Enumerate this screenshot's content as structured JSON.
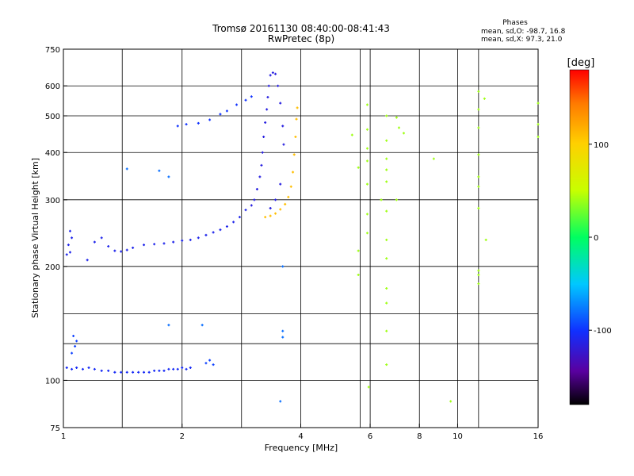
{
  "chart_data": {
    "type": "scatter",
    "title": "Tromsø 20161130 08:40:00-08:41:43",
    "subtitle": "RwPretec (8p)",
    "xlabel": "Frequency [MHz]",
    "ylabel": "Stationary phase Virtual Height [km]",
    "x_scale": "log2",
    "y_scale": "log",
    "xlim": [
      1,
      16
    ],
    "ylim": [
      75,
      750
    ],
    "x_ticks": [
      {
        "value": 1,
        "label": "1"
      },
      {
        "value": 2,
        "label": "2"
      },
      {
        "value": 4,
        "label": "4"
      },
      {
        "value": 6,
        "label": "6"
      },
      {
        "value": 8,
        "label": "8"
      },
      {
        "value": 10,
        "label": "10"
      },
      {
        "value": 16,
        "label": "16"
      }
    ],
    "x_minor_gridlines": [
      1.41,
      2.83,
      5.66,
      11.3
    ],
    "y_ticks": [
      {
        "value": 75,
        "label": "75"
      },
      {
        "value": 100,
        "label": "100"
      },
      {
        "value": 200,
        "label": "200"
      },
      {
        "value": 300,
        "label": "300"
      },
      {
        "value": 400,
        "label": "400"
      },
      {
        "value": 500,
        "label": "500"
      },
      {
        "value": 600,
        "label": "600"
      },
      {
        "value": 750,
        "label": "750"
      }
    ],
    "y_minor_gridlines": [
      125,
      150
    ],
    "grid": true,
    "phase_stats": {
      "title": "Phases",
      "line_o": "mean, sd,O: -98.7, 16.8",
      "line_x": "mean, sd,X:  97.3, 21.0"
    },
    "colorbar": {
      "label": "[deg]",
      "range": [
        -180,
        180
      ],
      "ticks": [
        {
          "value": 100,
          "label": "100"
        },
        {
          "value": 0,
          "label": "0"
        },
        {
          "value": -100,
          "label": "-100"
        }
      ]
    },
    "series": [
      {
        "trace": "E-layer",
        "phase": -105,
        "points": [
          [
            1.02,
            108
          ],
          [
            1.05,
            107
          ],
          [
            1.08,
            108
          ],
          [
            1.12,
            107
          ],
          [
            1.16,
            108
          ],
          [
            1.2,
            107
          ],
          [
            1.25,
            106
          ],
          [
            1.3,
            106
          ],
          [
            1.35,
            105
          ],
          [
            1.4,
            105
          ],
          [
            1.45,
            105
          ],
          [
            1.5,
            105
          ],
          [
            1.55,
            105
          ],
          [
            1.6,
            105
          ],
          [
            1.65,
            105
          ],
          [
            1.7,
            106
          ],
          [
            1.75,
            106
          ],
          [
            1.8,
            106
          ],
          [
            1.85,
            107
          ],
          [
            1.9,
            107
          ],
          [
            1.95,
            107
          ],
          [
            2.0,
            108
          ],
          [
            2.05,
            107
          ],
          [
            2.1,
            108
          ]
        ]
      },
      {
        "trace": "E-echo-upper",
        "phase": -95,
        "points": [
          [
            1.05,
            118
          ],
          [
            1.07,
            123
          ],
          [
            1.08,
            127
          ],
          [
            1.06,
            131
          ],
          [
            2.3,
            111
          ],
          [
            2.35,
            113
          ],
          [
            2.4,
            110
          ]
        ]
      },
      {
        "trace": "F-low-o",
        "phase": -110,
        "points": [
          [
            1.02,
            215
          ],
          [
            1.04,
            218
          ],
          [
            1.03,
            228
          ],
          [
            1.05,
            238
          ],
          [
            1.04,
            248
          ],
          [
            1.15,
            208
          ],
          [
            1.2,
            232
          ],
          [
            1.25,
            238
          ],
          [
            1.3,
            226
          ],
          [
            1.35,
            220
          ],
          [
            1.4,
            219
          ],
          [
            1.45,
            221
          ],
          [
            1.5,
            224
          ],
          [
            1.6,
            228
          ],
          [
            1.7,
            229
          ],
          [
            1.8,
            230
          ],
          [
            1.9,
            232
          ],
          [
            2.0,
            234
          ],
          [
            2.1,
            235
          ],
          [
            2.2,
            238
          ],
          [
            2.3,
            242
          ],
          [
            2.4,
            246
          ],
          [
            2.5,
            250
          ],
          [
            2.6,
            255
          ],
          [
            2.7,
            262
          ],
          [
            2.8,
            270
          ],
          [
            2.9,
            282
          ]
        ]
      },
      {
        "trace": "F-o-cusp",
        "phase": -115,
        "points": [
          [
            3.0,
            290
          ],
          [
            3.05,
            300
          ],
          [
            3.1,
            320
          ],
          [
            3.15,
            345
          ],
          [
            3.18,
            370
          ],
          [
            3.2,
            400
          ],
          [
            3.22,
            440
          ],
          [
            3.25,
            480
          ],
          [
            3.28,
            520
          ],
          [
            3.3,
            560
          ],
          [
            3.32,
            600
          ],
          [
            3.35,
            640
          ],
          [
            3.4,
            650
          ],
          [
            3.45,
            645
          ],
          [
            3.5,
            600
          ],
          [
            3.55,
            540
          ],
          [
            3.6,
            470
          ],
          [
            3.62,
            420
          ],
          [
            3.55,
            330
          ],
          [
            3.45,
            300
          ],
          [
            3.35,
            285
          ]
        ]
      },
      {
        "trace": "F-x",
        "phase": 110,
        "points": [
          [
            3.25,
            270
          ],
          [
            3.35,
            272
          ],
          [
            3.45,
            276
          ],
          [
            3.55,
            283
          ],
          [
            3.65,
            292
          ],
          [
            3.72,
            305
          ],
          [
            3.78,
            325
          ],
          [
            3.82,
            355
          ],
          [
            3.85,
            395
          ],
          [
            3.88,
            440
          ],
          [
            3.9,
            490
          ],
          [
            3.92,
            525
          ]
        ]
      },
      {
        "trace": "spread-F-high",
        "phase": -100,
        "points": [
          [
            1.95,
            470
          ],
          [
            2.05,
            475
          ],
          [
            2.2,
            478
          ],
          [
            2.35,
            488
          ],
          [
            2.5,
            505
          ],
          [
            2.6,
            515
          ],
          [
            2.75,
            535
          ],
          [
            2.9,
            550
          ],
          [
            3.0,
            562
          ]
        ]
      },
      {
        "trace": "isolated",
        "phase": -80,
        "points": [
          [
            1.45,
            362
          ],
          [
            1.75,
            358
          ],
          [
            1.85,
            345
          ],
          [
            1.85,
            140
          ],
          [
            2.25,
            140
          ],
          [
            3.6,
            200
          ],
          [
            3.55,
            88
          ],
          [
            3.6,
            135
          ],
          [
            3.6,
            130
          ]
        ]
      },
      {
        "trace": "high-freq-scatter",
        "phase": 40,
        "points": [
          [
            5.4,
            445
          ],
          [
            5.6,
            365
          ],
          [
            5.6,
            220
          ],
          [
            5.6,
            190
          ],
          [
            5.9,
            535
          ],
          [
            5.9,
            460
          ],
          [
            5.9,
            410
          ],
          [
            5.9,
            380
          ],
          [
            5.9,
            330
          ],
          [
            5.9,
            275
          ],
          [
            5.9,
            245
          ],
          [
            5.95,
            96
          ],
          [
            6.4,
            300
          ],
          [
            6.6,
            500
          ],
          [
            6.6,
            430
          ],
          [
            6.6,
            385
          ],
          [
            6.6,
            360
          ],
          [
            6.6,
            335
          ],
          [
            6.6,
            280
          ],
          [
            6.6,
            235
          ],
          [
            6.6,
            210
          ],
          [
            6.6,
            175
          ],
          [
            6.6,
            160
          ],
          [
            6.6,
            135
          ],
          [
            6.6,
            110
          ],
          [
            7.0,
            495
          ],
          [
            7.0,
            300
          ],
          [
            7.1,
            465
          ],
          [
            7.3,
            450
          ],
          [
            8.7,
            385
          ],
          [
            9.6,
            88
          ],
          [
            11.3,
            580
          ],
          [
            11.3,
            520
          ],
          [
            11.3,
            465
          ],
          [
            11.3,
            395
          ],
          [
            11.3,
            345
          ],
          [
            11.3,
            325
          ],
          [
            11.3,
            285
          ],
          [
            11.3,
            195
          ],
          [
            11.3,
            190
          ],
          [
            11.3,
            180
          ],
          [
            11.7,
            555
          ],
          [
            11.8,
            235
          ],
          [
            16,
            540
          ],
          [
            16,
            475
          ],
          [
            16,
            440
          ]
        ]
      }
    ]
  }
}
